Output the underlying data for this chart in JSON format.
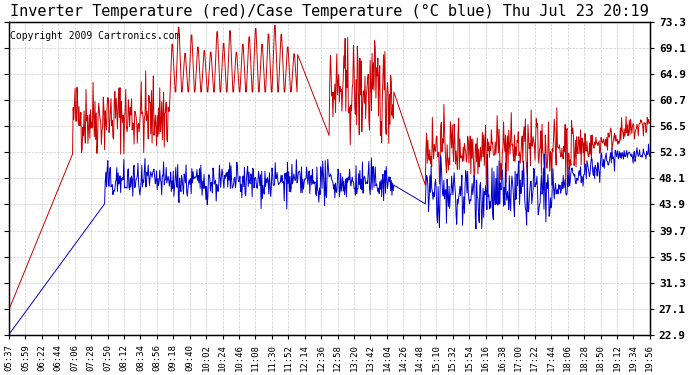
{
  "title": "Inverter Temperature (red)/Case Temperature (°C blue) Thu Jul 23 20:19",
  "copyright": "Copyright 2009 Cartronics.com",
  "yticks": [
    22.9,
    27.1,
    31.3,
    35.5,
    39.7,
    43.9,
    48.1,
    52.3,
    56.5,
    60.7,
    64.9,
    69.1,
    73.3
  ],
  "ylim": [
    22.9,
    73.3
  ],
  "xtick_labels": [
    "05:37",
    "05:59",
    "06:22",
    "06:44",
    "07:06",
    "07:28",
    "07:50",
    "08:12",
    "08:34",
    "08:56",
    "09:18",
    "09:40",
    "10:02",
    "10:24",
    "10:46",
    "11:08",
    "11:30",
    "11:52",
    "12:14",
    "12:36",
    "12:58",
    "13:20",
    "13:42",
    "14:04",
    "14:26",
    "14:48",
    "15:10",
    "15:32",
    "15:54",
    "16:16",
    "16:38",
    "17:00",
    "17:22",
    "17:44",
    "18:06",
    "18:28",
    "18:50",
    "19:12",
    "19:34",
    "19:56"
  ],
  "bg_color": "#ffffff",
  "plot_bg_color": "#ffffff",
  "grid_color": "#cccccc",
  "red_color": "#cc0000",
  "blue_color": "#0000cc",
  "title_fontsize": 11,
  "copyright_fontsize": 7
}
